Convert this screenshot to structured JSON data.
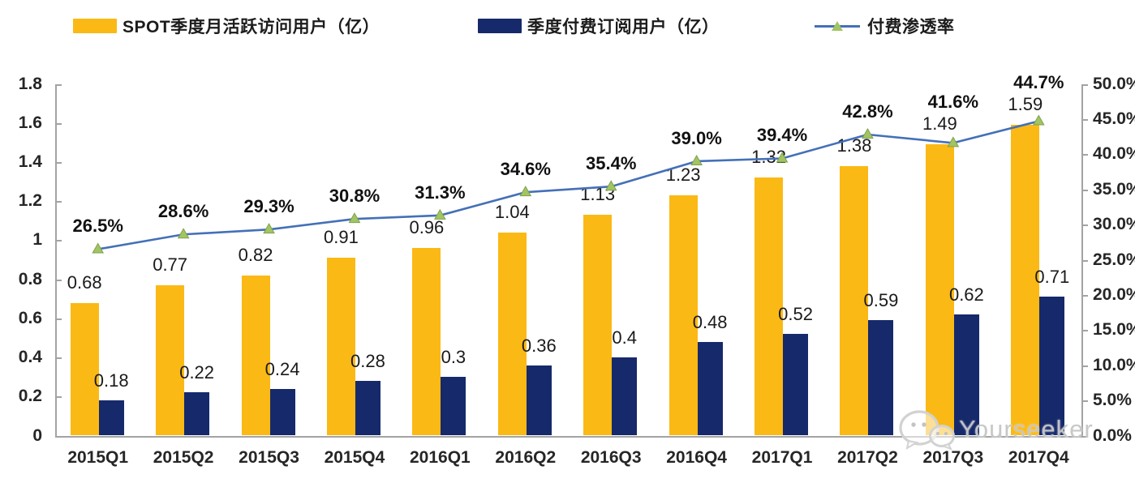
{
  "legend": {
    "items": [
      {
        "label": "SPOT季度月活跃访问用户（亿）",
        "color": "#FBB915",
        "type": "bar"
      },
      {
        "label": "季度付费订阅用户（亿）",
        "color": "#16296B",
        "type": "bar"
      },
      {
        "label": "付费渗透率",
        "color": "#4470B8",
        "marker_color": "#A2C464",
        "type": "line"
      }
    ]
  },
  "chart_data": {
    "type": "bar+line",
    "categories": [
      "2015Q1",
      "2015Q2",
      "2015Q3",
      "2015Q4",
      "2016Q1",
      "2016Q2",
      "2016Q3",
      "2016Q4",
      "2017Q1",
      "2017Q2",
      "2017Q3",
      "2017Q4"
    ],
    "series": [
      {
        "name": "SPOT季度月活跃访问用户（亿）",
        "type": "bar",
        "axis": "left",
        "color": "#FBB915",
        "values": [
          0.68,
          0.77,
          0.82,
          0.91,
          0.96,
          1.04,
          1.13,
          1.23,
          1.32,
          1.38,
          1.49,
          1.59
        ],
        "labels": [
          "0.68",
          "0.77",
          "0.82",
          "0.91",
          "0.96",
          "1.04",
          "1.13",
          "1.23",
          "1.32",
          "1.38",
          "1.49",
          "1.59"
        ]
      },
      {
        "name": "季度付费订阅用户（亿）",
        "type": "bar",
        "axis": "left",
        "color": "#16296B",
        "values": [
          0.18,
          0.22,
          0.24,
          0.28,
          0.3,
          0.36,
          0.4,
          0.48,
          0.52,
          0.59,
          0.62,
          0.71
        ],
        "labels": [
          "0.18",
          "0.22",
          "0.24",
          "0.28",
          "0.3",
          "0.36",
          "0.4",
          "0.48",
          "0.52",
          "0.59",
          "0.62",
          "0.71"
        ]
      },
      {
        "name": "付费渗透率",
        "type": "line",
        "axis": "right",
        "color": "#4470B8",
        "marker": "triangle",
        "marker_color": "#A2C464",
        "marker_edge_color": "#7FA24A",
        "values": [
          26.5,
          28.6,
          29.3,
          30.8,
          31.3,
          34.6,
          35.4,
          39.0,
          39.4,
          42.8,
          41.6,
          44.7
        ],
        "labels": [
          "26.5%",
          "28.6%",
          "29.3%",
          "30.8%",
          "31.3%",
          "34.6%",
          "35.4%",
          "39.0%",
          "39.4%",
          "42.8%",
          "41.6%",
          "44.7%"
        ]
      }
    ],
    "left_axis": {
      "min": 0,
      "max": 1.8,
      "step": 0.2,
      "tick_labels": [
        "0",
        "0.2",
        "0.4",
        "0.6",
        "0.8",
        "1",
        "1.2",
        "1.4",
        "1.6",
        "1.8"
      ]
    },
    "right_axis": {
      "min": 0,
      "max": 50,
      "step": 5,
      "tick_labels": [
        "0.0%",
        "5.0%",
        "10.0%",
        "15.0%",
        "20.0%",
        "25.0%",
        "30.0%",
        "35.0%",
        "40.0%",
        "45.0%",
        "50.0%"
      ]
    },
    "grid": false,
    "legend_position": "top"
  },
  "watermark": {
    "text": "Yourseeker",
    "icon": "wechat-icon"
  }
}
